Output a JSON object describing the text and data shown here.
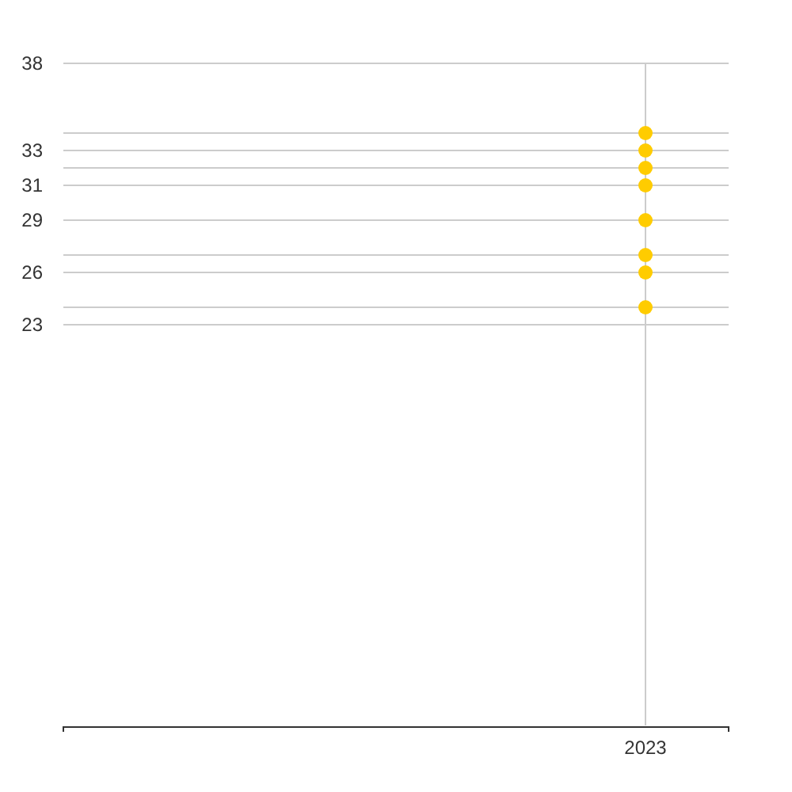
{
  "chart_data": {
    "type": "scatter",
    "categories": [
      "2023"
    ],
    "series": [
      {
        "color": "#ffcc00",
        "values": [
          34
        ]
      },
      {
        "color": "#ffcc00",
        "values": [
          33
        ]
      },
      {
        "color": "#ffcc00",
        "values": [
          32
        ]
      },
      {
        "color": "#ffcc00",
        "values": [
          31
        ]
      },
      {
        "color": "#ffcc00",
        "values": [
          29
        ]
      },
      {
        "color": "#ffcc00",
        "values": [
          27
        ]
      },
      {
        "color": "#ffcc00",
        "values": [
          26
        ]
      },
      {
        "color": "#ffcc00",
        "values": [
          24
        ]
      }
    ],
    "ylim": [
      0,
      38
    ],
    "yticks": [
      38,
      {
        "value": 34,
        "label": null
      },
      33,
      {
        "value": 32,
        "label": null
      },
      31,
      29,
      {
        "value": 27,
        "label": null
      },
      26,
      {
        "value": 24,
        "label": null
      },
      23
    ],
    "grid": true,
    "marker": "circle"
  }
}
